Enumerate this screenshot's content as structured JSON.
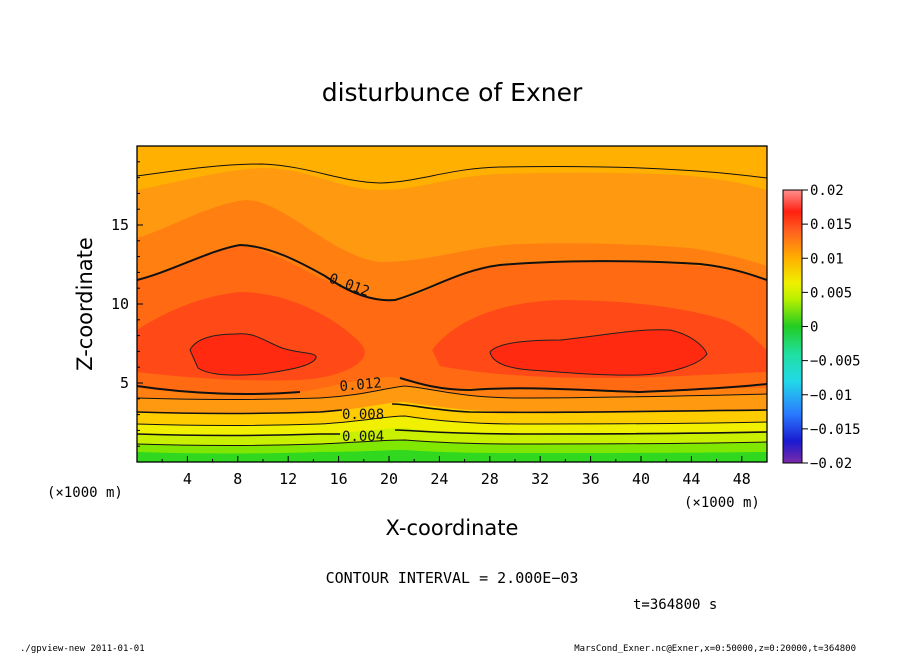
{
  "chart_data": {
    "type": "heatmap",
    "title": "disturbunce of Exner",
    "xlabel": "X-coordinate",
    "ylabel": "Z-coordinate",
    "x_unit_note": "(×1000 m)",
    "x_ticks": [
      "4",
      "8",
      "12",
      "16",
      "20",
      "24",
      "28",
      "32",
      "36",
      "40",
      "44",
      "48"
    ],
    "y_ticks": [
      "5",
      "10",
      "15"
    ],
    "xlim": [
      0,
      50
    ],
    "ylim": [
      0,
      20
    ],
    "colorbar": {
      "labels": [
        "0.02",
        "0.015",
        "0.01",
        "0.005",
        "0",
        "−0.005",
        "−0.01",
        "−0.015",
        "−0.02"
      ],
      "range": [
        -0.02,
        0.02
      ]
    },
    "contour_labels": [
      "0.012",
      "0.012",
      "0.008",
      "0.004"
    ],
    "contour_interval_text": "CONTOUR INTERVAL = 2.000E−03",
    "time_text": "t=364800 s"
  },
  "footer": {
    "left": "./gpview-new   2011-01-01",
    "right": "MarsCond_Exner.nc@Exner,x=0:50000,z=0:20000,t=364800"
  }
}
